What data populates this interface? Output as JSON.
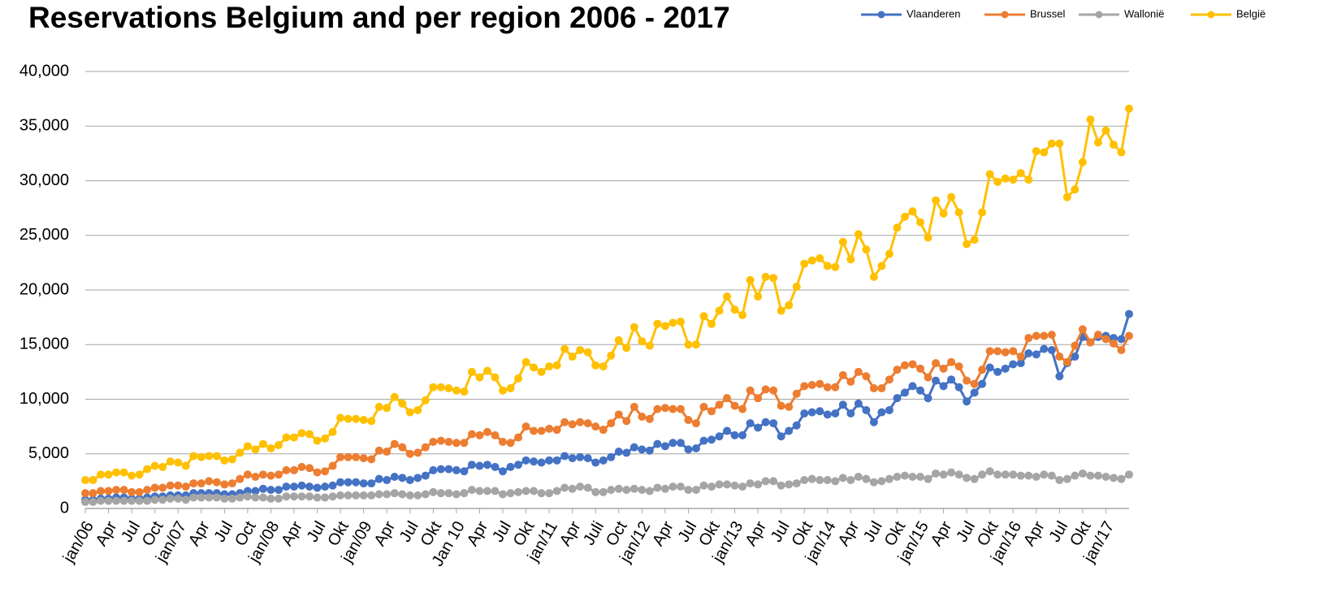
{
  "chart_data": {
    "type": "line",
    "title": "Reservations Belgium and per region 2006 - 2017",
    "legend": "top-right",
    "grid": true,
    "categories": [
      "jan/06",
      null,
      null,
      "Apr",
      null,
      null,
      "Jul",
      null,
      null,
      "Oct",
      null,
      null,
      "jan/07",
      null,
      null,
      "Apr",
      null,
      null,
      "Jul",
      null,
      null,
      "Oct",
      null,
      null,
      "jan/08",
      null,
      null,
      "Apr",
      null,
      null,
      "Jul",
      null,
      null,
      "Okt",
      null,
      null,
      "jan/09",
      null,
      null,
      "Apr",
      null,
      null,
      "Jul",
      null,
      null,
      "Okt",
      null,
      null,
      "Jan 10",
      null,
      null,
      "Apr",
      null,
      null,
      "Jul",
      null,
      null,
      "Okt",
      null,
      null,
      "jan/11",
      null,
      null,
      "Apr",
      null,
      null,
      "Juli",
      null,
      null,
      "Oct",
      null,
      null,
      "jan/12",
      null,
      null,
      "Apr",
      null,
      null,
      "Jul",
      null,
      null,
      "Okt",
      null,
      null,
      "jan/13",
      null,
      null,
      "Apr",
      null,
      null,
      "Jul",
      null,
      null,
      "Okt",
      null,
      null,
      "jan/14",
      null,
      null,
      "Apr",
      null,
      null,
      "Jul",
      null,
      null,
      "Okt",
      null,
      null,
      "jan/15",
      null,
      null,
      "Apr",
      null,
      null,
      "Jul",
      null,
      null,
      "Okt",
      null,
      null,
      "jan/16",
      null,
      null,
      "Apr",
      null,
      null,
      "Jul",
      null,
      null,
      "Okt",
      null,
      null,
      "jan/17",
      null,
      null,
      null
    ],
    "ylim": [
      0,
      40000
    ],
    "yticks": [
      0,
      {
        "value": 5000,
        "label": "5,000"
      },
      {
        "value": 10000,
        "label": "10,000"
      },
      {
        "value": 15000,
        "label": "15,000"
      },
      {
        "value": 20000,
        "label": "20,000"
      },
      {
        "value": 25000,
        "label": "25,000"
      },
      {
        "value": 30000,
        "label": "30,000"
      },
      {
        "value": 35000,
        "label": "35,000"
      },
      {
        "value": 40000,
        "label": "40,000"
      }
    ],
    "series": [
      {
        "name": "Vlaanderen",
        "color": "#4472c4",
        "values": [
          800,
          800,
          900,
          900,
          1000,
          1000,
          900,
          900,
          1000,
          1100,
          1100,
          1200,
          1200,
          1200,
          1400,
          1400,
          1400,
          1400,
          1300,
          1300,
          1400,
          1600,
          1600,
          1800,
          1700,
          1700,
          2000,
          2000,
          2100,
          2000,
          1900,
          2000,
          2100,
          2400,
          2400,
          2400,
          2300,
          2300,
          2700,
          2600,
          2900,
          2800,
          2600,
          2800,
          3000,
          3500,
          3600,
          3600,
          3500,
          3400,
          4000,
          3900,
          4000,
          3800,
          3400,
          3800,
          4000,
          4400,
          4300,
          4200,
          4400,
          4400,
          4800,
          4600,
          4700,
          4600,
          4200,
          4400,
          4700,
          5200,
          5100,
          5600,
          5400,
          5300,
          5900,
          5700,
          6000,
          6000,
          5400,
          5500,
          6200,
          6300,
          6600,
          7100,
          6700,
          6700,
          7800,
          7400,
          7900,
          7800,
          6600,
          7100,
          7600,
          8700,
          8800,
          8900,
          8600,
          8700,
          9500,
          8700,
          9600,
          9000,
          7900,
          8800,
          9000,
          10100,
          10600,
          11200,
          10800,
          10100,
          11700,
          11200,
          11800,
          11100,
          9800,
          10600,
          11400,
          12900,
          12500,
          12800,
          13200,
          13300,
          14200,
          14100,
          14600,
          14500,
          12100,
          13300,
          13900,
          15700,
          15200,
          15700,
          15800,
          15600,
          15500,
          17800
        ]
      },
      {
        "name": "Brussel",
        "color": "#ed7d31",
        "values": [
          1400,
          1400,
          1600,
          1600,
          1700,
          1700,
          1500,
          1500,
          1700,
          1900,
          1900,
          2100,
          2100,
          2000,
          2300,
          2300,
          2500,
          2400,
          2200,
          2300,
          2700,
          3100,
          2900,
          3100,
          3000,
          3100,
          3500,
          3500,
          3800,
          3700,
          3300,
          3400,
          3900,
          4700,
          4700,
          4700,
          4600,
          4500,
          5300,
          5200,
          5900,
          5600,
          5000,
          5100,
          5600,
          6100,
          6200,
          6100,
          6000,
          6000,
          6800,
          6700,
          7000,
          6700,
          6100,
          6000,
          6500,
          7500,
          7100,
          7100,
          7300,
          7200,
          7900,
          7700,
          7900,
          7800,
          7500,
          7200,
          7800,
          8600,
          8000,
          9300,
          8400,
          8200,
          9100,
          9200,
          9100,
          9100,
          8100,
          7800,
          9300,
          8900,
          9500,
          10100,
          9400,
          9100,
          10800,
          10100,
          10900,
          10800,
          9400,
          9300,
          10500,
          11200,
          11300,
          11400,
          11100,
          11100,
          12200,
          11600,
          12500,
          12100,
          11000,
          11000,
          11800,
          12700,
          13100,
          13200,
          12800,
          12000,
          13300,
          12800,
          13400,
          13000,
          11700,
          11400,
          12700,
          14400,
          14400,
          14300,
          14400,
          13900,
          15600,
          15800,
          15800,
          15900,
          13900,
          13400,
          14900,
          16400,
          15200,
          15900,
          15500,
          15100,
          14500,
          15800
        ]
      },
      {
        "name": "Wallonië",
        "color": "#a5a5a5",
        "values": [
          600,
          600,
          700,
          700,
          700,
          700,
          700,
          700,
          700,
          800,
          800,
          900,
          900,
          800,
          1000,
          1000,
          1000,
          1000,
          900,
          900,
          1000,
          1100,
          1000,
          1000,
          900,
          900,
          1100,
          1100,
          1100,
          1100,
          1000,
          1000,
          1100,
          1200,
          1200,
          1200,
          1200,
          1200,
          1300,
          1300,
          1400,
          1300,
          1200,
          1200,
          1300,
          1500,
          1400,
          1400,
          1300,
          1400,
          1700,
          1600,
          1600,
          1600,
          1300,
          1400,
          1500,
          1600,
          1600,
          1400,
          1400,
          1600,
          1900,
          1800,
          2000,
          1900,
          1500,
          1500,
          1700,
          1800,
          1700,
          1800,
          1700,
          1600,
          1900,
          1800,
          2000,
          2000,
          1700,
          1700,
          2100,
          2000,
          2200,
          2200,
          2100,
          2000,
          2300,
          2200,
          2500,
          2500,
          2100,
          2200,
          2300,
          2600,
          2700,
          2600,
          2600,
          2500,
          2800,
          2600,
          2900,
          2700,
          2400,
          2500,
          2700,
          2900,
          3000,
          2900,
          2900,
          2700,
          3200,
          3100,
          3300,
          3100,
          2800,
          2700,
          3100,
          3400,
          3100,
          3100,
          3100,
          3000,
          3000,
          2900,
          3100,
          3000,
          2600,
          2700,
          3000,
          3200,
          3000,
          3000,
          2900,
          2800,
          2700,
          3100
        ]
      },
      {
        "name": "België",
        "color": "#ffc000",
        "values": [
          2600,
          2600,
          3100,
          3100,
          3300,
          3300,
          3000,
          3100,
          3600,
          3900,
          3800,
          4300,
          4200,
          3900,
          4800,
          4700,
          4800,
          4800,
          4400,
          4500,
          5100,
          5700,
          5400,
          5900,
          5500,
          5800,
          6500,
          6500,
          6900,
          6800,
          6200,
          6400,
          7000,
          8300,
          8200,
          8200,
          8100,
          8000,
          9300,
          9200,
          10200,
          9600,
          8800,
          9000,
          9900,
          11100,
          11100,
          11000,
          10800,
          10700,
          12500,
          12000,
          12600,
          12000,
          10800,
          11000,
          11900,
          13400,
          12900,
          12500,
          13000,
          13100,
          14600,
          13900,
          14500,
          14300,
          13100,
          13000,
          14000,
          15400,
          14700,
          16600,
          15300,
          14900,
          16900,
          16700,
          17000,
          17100,
          15000,
          15000,
          17600,
          16900,
          18100,
          19400,
          18200,
          17700,
          20900,
          19400,
          21200,
          21100,
          18100,
          18600,
          20300,
          22400,
          22700,
          22900,
          22200,
          22100,
          24400,
          22800,
          25100,
          23700,
          21200,
          22200,
          23300,
          25700,
          26700,
          27200,
          26200,
          24800,
          28200,
          27000,
          28500,
          27100,
          24200,
          24600,
          27100,
          30600,
          29900,
          30200,
          30100,
          30700,
          30100,
          32700,
          32600,
          33400,
          33400,
          28500,
          29200,
          31700,
          35600,
          33500,
          34600,
          33300,
          32600,
          36600
        ]
      }
    ]
  }
}
